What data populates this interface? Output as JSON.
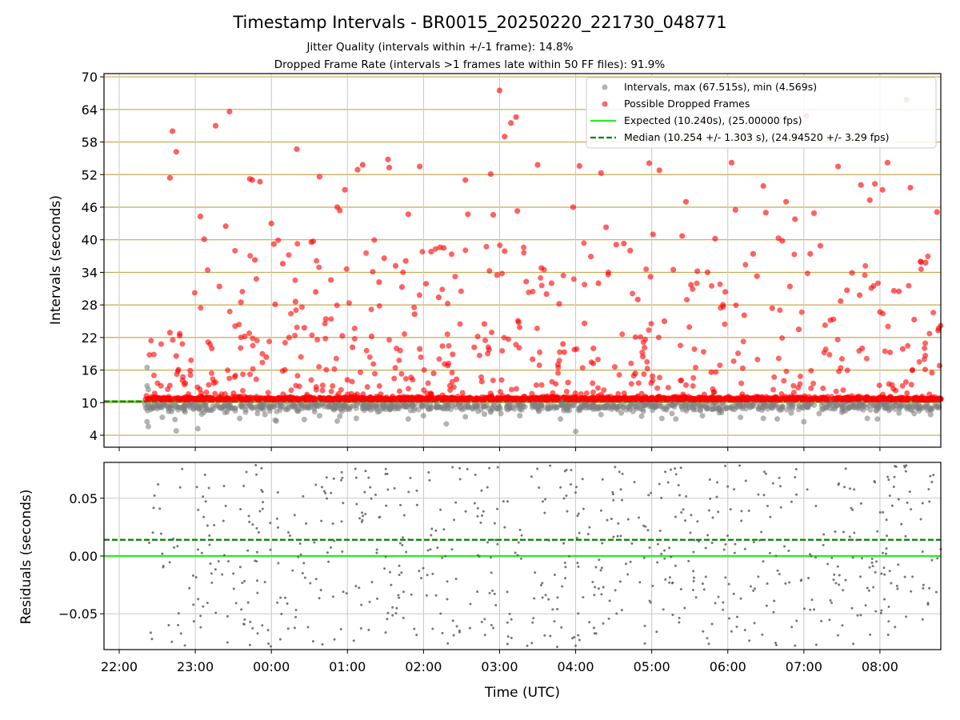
{
  "header": {
    "title": "Timestamp Intervals - BR0015_20250220_221730_048771",
    "subtitle_1": "Jitter Quality (intervals within +/-1 frame): 14.8%",
    "subtitle_2": "Dropped Frame Rate (intervals >1 frames late within 50 FF files): 91.9%"
  },
  "colors": {
    "intervals": "#808080",
    "dropped": "#ff0000",
    "expected": "#22ee22",
    "median": "#008000",
    "hgrid": "#c8aa50",
    "vgrid": "#c8c8c8",
    "residuals": "#606060"
  },
  "chart_data": [
    {
      "type": "scatter",
      "panel": "intervals",
      "xlabel": "",
      "ylabel": "Intervals (seconds)",
      "xlim": [
        "21:48",
        "08:48"
      ],
      "ylim": [
        1.8,
        70.6
      ],
      "yticks": [
        4,
        10,
        16,
        22,
        28,
        34,
        40,
        46,
        52,
        58,
        64,
        70
      ],
      "xticks": [
        "22:00",
        "23:00",
        "00:00",
        "01:00",
        "02:00",
        "03:00",
        "04:00",
        "05:00",
        "06:00",
        "07:00",
        "08:00"
      ],
      "grid": true,
      "legend_position": "top-right",
      "legend": [
        "Intervals, max (67.515s), min (4.569s)",
        "Possible Dropped Frames",
        "Expected (10.240s), (25.00000 fps)",
        "Median (10.254 +/- 1.303 s), (24.94520 +/- 3.29 fps)"
      ],
      "series": [
        {
          "name": "Intervals, max (67.515s), min (4.569s)",
          "marker": "circle",
          "max": 67.515,
          "min": 4.569,
          "points": [
            [
              "22:22",
              16.5
            ],
            [
              "22:22",
              13.1
            ],
            [
              "22:23",
              12.4
            ],
            [
              "22:22",
              6.5
            ],
            [
              "22:23",
              5.6
            ],
            [
              "22:30",
              8.9
            ],
            [
              "22:34",
              7.3
            ],
            [
              "22:39",
              8.4
            ],
            [
              "22:44",
              6.9
            ],
            [
              "22:45",
              4.8
            ],
            [
              "22:52",
              8.3
            ],
            [
              "23:02",
              5.2
            ],
            [
              "23:05",
              7.9
            ],
            [
              "23:13",
              8.6
            ],
            [
              "23:25",
              8.3
            ],
            [
              "23:35",
              7.1
            ],
            [
              "23:49",
              8.0
            ],
            [
              "23:55",
              7.8
            ],
            [
              "00:03",
              6.8
            ],
            [
              "00:04",
              6.6
            ],
            [
              "00:21",
              8.4
            ],
            [
              "00:26",
              6.9
            ],
            [
              "00:38",
              7.6
            ],
            [
              "00:52",
              6.6
            ],
            [
              "00:54",
              7.5
            ],
            [
              "01:07",
              7.1
            ],
            [
              "01:24",
              8.3
            ],
            [
              "01:48",
              7.0
            ],
            [
              "02:00",
              7.6
            ],
            [
              "02:18",
              6.1
            ],
            [
              "02:33",
              7.4
            ],
            [
              "02:48",
              7.9
            ],
            [
              "03:01",
              8.0
            ],
            [
              "03:16",
              7.6
            ],
            [
              "03:31",
              8.4
            ],
            [
              "03:48",
              7.0
            ],
            [
              "03:55",
              8.6
            ],
            [
              "04:00",
              4.7
            ],
            [
              "04:20",
              7.8
            ],
            [
              "04:36",
              8.1
            ],
            [
              "04:52",
              7.5
            ],
            [
              "05:08",
              7.1
            ],
            [
              "05:16",
              8.0
            ],
            [
              "05:19",
              7.0
            ],
            [
              "05:40",
              7.6
            ],
            [
              "05:55",
              8.2
            ],
            [
              "06:10",
              7.3
            ],
            [
              "06:28",
              7.1
            ],
            [
              "06:39",
              7.0
            ],
            [
              "06:50",
              8.1
            ],
            [
              "07:00",
              6.5
            ],
            [
              "07:12",
              8.0
            ],
            [
              "07:30",
              8.2
            ],
            [
              "07:50",
              7.1
            ],
            [
              "07:58",
              7.0
            ],
            [
              "08:15",
              8.1
            ],
            [
              "08:27",
              8.0
            ],
            [
              "08:40",
              7.8
            ]
          ]
        },
        {
          "name": "Possible Dropped Frames",
          "marker": "circle",
          "points": [
            [
              "22:40",
              51.4
            ],
            [
              "22:42",
              60.0
            ],
            [
              "22:45",
              56.2
            ],
            [
              "22:40",
              22.9
            ],
            [
              "22:45",
              18.6
            ],
            [
              "22:50",
              14.1
            ],
            [
              "22:56",
              15.9
            ],
            [
              "23:04",
              44.3
            ],
            [
              "23:07",
              40.1
            ],
            [
              "23:13",
              20.0
            ],
            [
              "23:16",
              61.0
            ],
            [
              "23:19",
              31.4
            ],
            [
              "23:24",
              42.5
            ],
            [
              "23:27",
              63.6
            ],
            [
              "23:36",
              28.5
            ],
            [
              "23:39",
              22.2
            ],
            [
              "23:43",
              51.2
            ],
            [
              "23:45",
              51.0
            ],
            [
              "23:47",
              36.3
            ],
            [
              "23:51",
              50.7
            ],
            [
              "23:56",
              18.4
            ],
            [
              "00:00",
              43.0
            ],
            [
              "00:02",
              39.2
            ],
            [
              "00:03",
              28.1
            ],
            [
              "00:09",
              35.6
            ],
            [
              "00:14",
              22.0
            ],
            [
              "00:19",
              28.6
            ],
            [
              "00:20",
              56.7
            ],
            [
              "00:26",
              23.8
            ],
            [
              "00:33",
              39.7
            ],
            [
              "00:35",
              30.4
            ],
            [
              "00:38",
              51.6
            ],
            [
              "00:43",
              25.4
            ],
            [
              "00:47",
              32.6
            ],
            [
              "00:52",
              46.0
            ],
            [
              "00:54",
              45.4
            ],
            [
              "00:56",
              22.3
            ],
            [
              "00:58",
              49.2
            ],
            [
              "01:00",
              14.2
            ],
            [
              "01:04",
              20.2
            ],
            [
              "01:08",
              52.9
            ],
            [
              "01:12",
              53.8
            ],
            [
              "01:19",
              22.2
            ],
            [
              "01:25",
              32.2
            ],
            [
              "01:29",
              36.6
            ],
            [
              "01:32",
              54.8
            ],
            [
              "01:33",
              53.3
            ],
            [
              "01:38",
              35.2
            ],
            [
              "01:43",
              31.3
            ],
            [
              "01:46",
              36.1
            ],
            [
              "01:48",
              44.7
            ],
            [
              "01:53",
              26.3
            ],
            [
              "01:57",
              53.5
            ],
            [
              "01:57",
              19.9
            ],
            [
              "02:02",
              31.9
            ],
            [
              "02:06",
              37.8
            ],
            [
              "02:08",
              15.4
            ],
            [
              "02:12",
              29.4
            ],
            [
              "02:13",
              38.6
            ],
            [
              "02:16",
              38.5
            ],
            [
              "02:23",
              18.9
            ],
            [
              "02:26",
              14.3
            ],
            [
              "02:33",
              51.0
            ],
            [
              "02:35",
              44.7
            ],
            [
              "02:40",
              20.2
            ],
            [
              "02:46",
              13.9
            ],
            [
              "02:48",
              24.5
            ],
            [
              "02:53",
              52.1
            ],
            [
              "02:55",
              44.6
            ],
            [
              "02:58",
              33.5
            ],
            [
              "03:00",
              67.5
            ],
            [
              "03:04",
              59.0
            ],
            [
              "03:04",
              37.9
            ],
            [
              "03:09",
              61.5
            ],
            [
              "03:13",
              62.6
            ],
            [
              "03:14",
              45.3
            ],
            [
              "03:15",
              24.8
            ],
            [
              "03:21",
              32.3
            ],
            [
              "03:26",
              18.0
            ],
            [
              "03:30",
              53.8
            ],
            [
              "03:33",
              34.8
            ],
            [
              "03:37",
              30.0
            ],
            [
              "03:41",
              32.0
            ],
            [
              "03:47",
              28.2
            ],
            [
              "03:50",
              20.8
            ],
            [
              "03:51",
              19.3
            ],
            [
              "03:54",
              13.7
            ],
            [
              "03:58",
              46.0
            ],
            [
              "04:03",
              53.6
            ],
            [
              "04:07",
              24.6
            ],
            [
              "04:12",
              36.9
            ],
            [
              "04:14",
              20.0
            ],
            [
              "04:18",
              32.0
            ],
            [
              "04:20",
              52.3
            ],
            [
              "04:24",
              42.3
            ],
            [
              "04:32",
              39.1
            ],
            [
              "04:38",
              39.3
            ],
            [
              "04:43",
              38.0
            ],
            [
              "04:47",
              15.4
            ],
            [
              "04:49",
              29.0
            ],
            [
              "04:53",
              18.5
            ],
            [
              "04:58",
              54.1
            ],
            [
              "04:59",
              33.2
            ],
            [
              "05:01",
              41.0
            ],
            [
              "05:06",
              52.8
            ],
            [
              "05:10",
              25.0
            ],
            [
              "05:17",
              34.5
            ],
            [
              "05:24",
              40.7
            ],
            [
              "05:27",
              47.0
            ],
            [
              "05:31",
              31.7
            ],
            [
              "05:36",
              34.2
            ],
            [
              "05:42",
              62.6
            ],
            [
              "05:44",
              34.0
            ],
            [
              "05:47",
              15.6
            ],
            [
              "05:50",
              40.2
            ],
            [
              "05:58",
              30.4
            ],
            [
              "06:03",
              54.2
            ],
            [
              "06:06",
              45.5
            ],
            [
              "06:13",
              26.1
            ],
            [
              "06:20",
              37.4
            ],
            [
              "06:23",
              33.3
            ],
            [
              "06:28",
              49.9
            ],
            [
              "06:30",
              45.0
            ],
            [
              "06:35",
              27.4
            ],
            [
              "06:40",
              40.3
            ],
            [
              "06:43",
              39.8
            ],
            [
              "06:46",
              47.0
            ],
            [
              "06:49",
              31.4
            ],
            [
              "06:53",
              43.8
            ],
            [
              "06:56",
              23.5
            ],
            [
              "07:02",
              62.8
            ],
            [
              "07:05",
              37.4
            ],
            [
              "07:08",
              44.9
            ],
            [
              "07:13",
              38.9
            ],
            [
              "07:21",
              25.2
            ],
            [
              "07:27",
              53.5
            ],
            [
              "07:29",
              28.7
            ],
            [
              "07:34",
              30.7
            ],
            [
              "07:38",
              33.9
            ],
            [
              "07:44",
              29.8
            ],
            [
              "07:45",
              50.1
            ],
            [
              "07:46",
              20.0
            ],
            [
              "07:52",
              47.3
            ],
            [
              "07:56",
              50.3
            ],
            [
              "08:00",
              26.7
            ],
            [
              "08:02",
              49.2
            ],
            [
              "08:06",
              54.2
            ],
            [
              "08:11",
              30.6
            ],
            [
              "08:15",
              30.5
            ],
            [
              "08:18",
              19.9
            ],
            [
              "08:21",
              65.8
            ],
            [
              "08:24",
              49.6
            ],
            [
              "08:27",
              25.3
            ],
            [
              "08:32",
              36.0
            ],
            [
              "08:36",
              35.8
            ],
            [
              "08:41",
              15.5
            ],
            [
              "08:45",
              45.1
            ],
            [
              "08:46",
              23.3
            ]
          ]
        }
      ]
    },
    {
      "type": "scatter",
      "panel": "residuals",
      "xlabel": "Time (UTC)",
      "ylabel": "Residuals (seconds)",
      "xlim": [
        "21:48",
        "08:48"
      ],
      "ylim": [
        -0.081,
        0.081
      ],
      "yticks": [
        0.05,
        0.0,
        -0.05
      ],
      "ytick_labels": [
        "0.05",
        "0.00",
        "−0.05"
      ],
      "xticks": [
        "22:00",
        "23:00",
        "00:00",
        "01:00",
        "02:00",
        "03:00",
        "04:00",
        "05:00",
        "06:00",
        "07:00",
        "08:00"
      ],
      "grid": true,
      "reference_lines": [
        {
          "name": "Expected",
          "y": 0.0,
          "style": "solid"
        },
        {
          "name": "Median",
          "y": 0.014,
          "style": "dashed"
        }
      ]
    }
  ]
}
